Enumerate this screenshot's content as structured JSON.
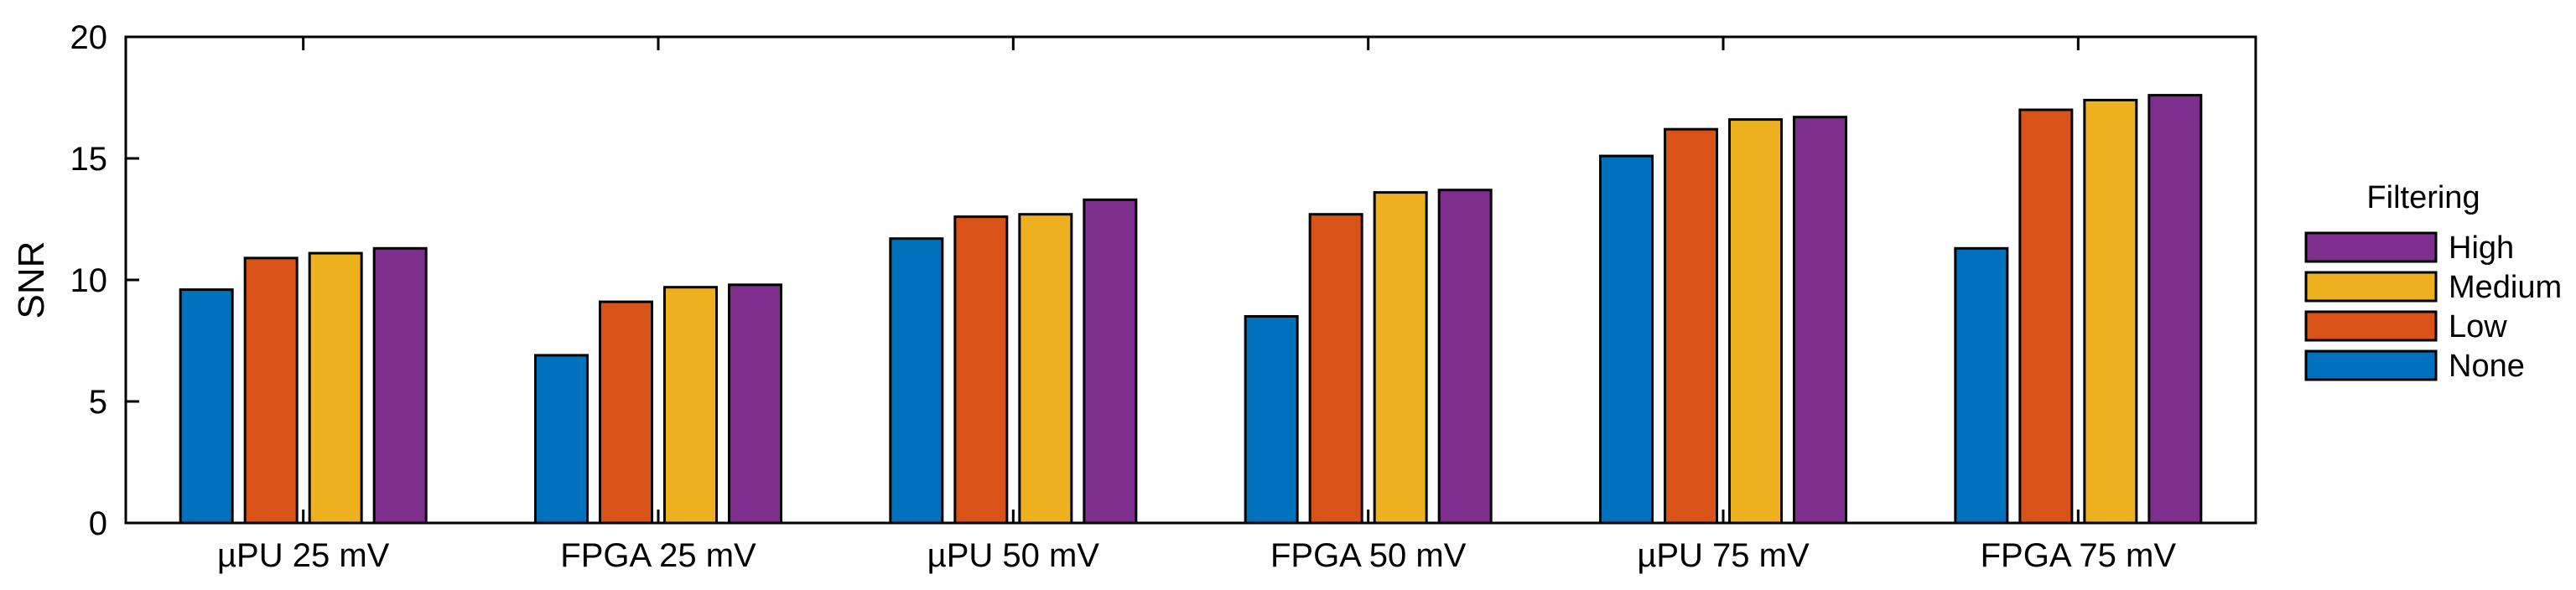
{
  "chart_data": {
    "type": "bar",
    "title": "",
    "xlabel": "",
    "ylabel": "SNR",
    "ylim": [
      0,
      20
    ],
    "yticks": [
      "0",
      "5",
      "10",
      "15",
      "20"
    ],
    "categories": [
      "µPU 25 mV",
      "FPGA 25 mV",
      "µPU 50 mV",
      "FPGA 50 mV",
      "µPU 75 mV",
      "FPGA 75 mV"
    ],
    "series": [
      {
        "name": "None",
        "color": "#0072BD",
        "values": [
          9.6,
          6.9,
          11.7,
          8.5,
          15.1,
          11.3
        ]
      },
      {
        "name": "Low",
        "color": "#D95319",
        "values": [
          10.9,
          9.1,
          12.6,
          12.7,
          16.2,
          17.0
        ]
      },
      {
        "name": "Medium",
        "color": "#EDB120",
        "values": [
          11.1,
          9.7,
          12.7,
          13.6,
          16.6,
          17.4
        ]
      },
      {
        "name": "High",
        "color": "#7E2F8E",
        "values": [
          11.3,
          9.8,
          13.3,
          13.7,
          16.7,
          17.6
        ]
      }
    ],
    "legend": {
      "title": "Filtering",
      "placement": "right",
      "order": [
        "High",
        "Medium",
        "Low",
        "None"
      ]
    },
    "grid": false
  }
}
